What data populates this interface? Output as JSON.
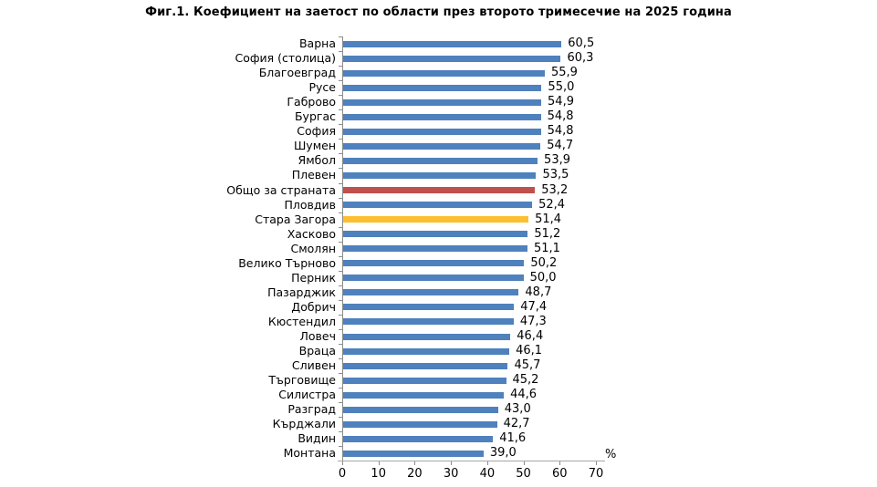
{
  "title": "Фиг.1. Коефициент на заетост по области през второто тримесечие на 2025 година",
  "colors": {
    "bar_default": "#4E81BD",
    "bar_total": "#C0504D",
    "bar_stara_zagora": "#FDBF2D",
    "axis": "#8C8C8C",
    "axis_line_x": "#A6A6A6",
    "text": "#000000",
    "background": "#FFFFFF"
  },
  "chart_data": {
    "type": "bar",
    "orientation": "horizontal",
    "title": "Фиг.1. Коефициент на заетост по области през второто тримесечие на 2025 година",
    "xlabel": "%",
    "ylabel": "",
    "xlim": [
      0,
      70
    ],
    "x_ticks": [
      0,
      10,
      20,
      30,
      40,
      50,
      60,
      70
    ],
    "grid": false,
    "legend": "none",
    "categories": [
      "Варна",
      "София (столица)",
      "Благоевград",
      "Русе",
      "Габрово",
      "Бургас",
      "София",
      "Шумен",
      "Ямбол",
      "Плевен",
      "Общо за страната",
      "Пловдив",
      "Стара Загора",
      "Хасково",
      "Смолян",
      "Велико Търново",
      "Перник",
      "Пазарджик",
      "Добрич",
      "Кюстендил",
      "Ловеч",
      "Враца",
      "Сливен",
      "Търговище",
      "Силистра",
      "Разград",
      "Кърджали",
      "Видин",
      "Монтана"
    ],
    "values": [
      60.5,
      60.3,
      55.9,
      55.0,
      54.9,
      54.8,
      54.8,
      54.7,
      53.9,
      53.5,
      53.2,
      52.4,
      51.4,
      51.2,
      51.1,
      50.2,
      50.0,
      48.7,
      47.4,
      47.3,
      46.4,
      46.1,
      45.7,
      45.2,
      44.6,
      43.0,
      42.7,
      41.6,
      39.0
    ],
    "value_labels": [
      "60,5",
      "60,3",
      "55,9",
      "55,0",
      "54,9",
      "54,8",
      "54,8",
      "54,7",
      "53,9",
      "53,5",
      "53,2",
      "52,4",
      "51,4",
      "51,2",
      "51,1",
      "50,2",
      "50,0",
      "48,7",
      "47,4",
      "47,3",
      "46,4",
      "46,1",
      "45,7",
      "45,2",
      "44,6",
      "43,0",
      "42,7",
      "41,6",
      "39,0"
    ],
    "highlight_colors": {
      "Общо за страната": "#C0504D",
      "Стара Загора": "#FDBF2D"
    }
  }
}
